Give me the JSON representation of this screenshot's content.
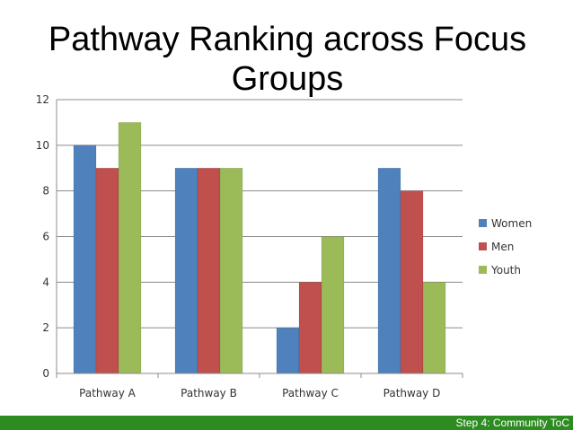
{
  "slide": {
    "title": "Pathway Ranking across Focus Groups",
    "footer": "Step 4: Community  ToC"
  },
  "chart_data": {
    "type": "bar",
    "title": "Pathway Ranking across Focus Groups",
    "xlabel": "",
    "ylabel": "",
    "categories": [
      "Pathway A",
      "Pathway B",
      "Pathway C",
      "Pathway D"
    ],
    "series": [
      {
        "name": "Women",
        "values": [
          10,
          9,
          2,
          9
        ]
      },
      {
        "name": "Men",
        "values": [
          9,
          9,
          4,
          8
        ]
      },
      {
        "name": "Youth",
        "values": [
          11,
          9,
          6,
          4
        ]
      }
    ],
    "ylim": [
      0,
      12
    ],
    "yticks": [
      0,
      2,
      4,
      6,
      8,
      10,
      12
    ],
    "grid": true,
    "legend": "right",
    "colors": {
      "Women": "#4f81bd",
      "Men": "#c0504d",
      "Youth": "#9bbb59",
      "footer": "#2e8b22",
      "grid": "#8c8c8c"
    }
  }
}
